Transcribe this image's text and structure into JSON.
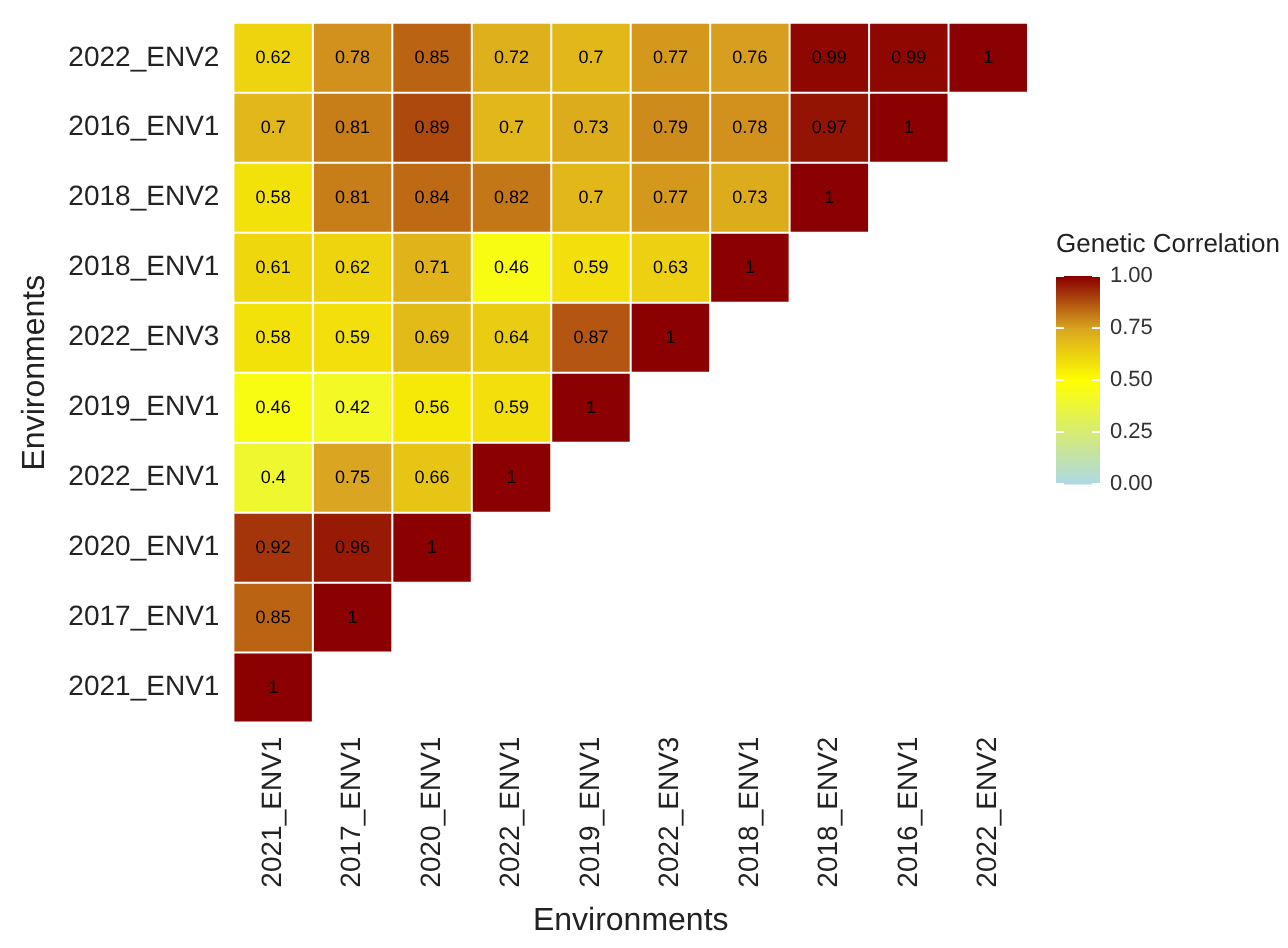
{
  "chart_data": {
    "type": "heatmap",
    "xlabel": "Environments",
    "ylabel": "Environments",
    "clabel": "Genetic Correlation",
    "categories": [
      "2021_ENV1",
      "2017_ENV1",
      "2020_ENV1",
      "2022_ENV1",
      "2019_ENV1",
      "2022_ENV3",
      "2018_ENV1",
      "2018_ENV2",
      "2016_ENV1",
      "2022_ENV2"
    ],
    "y_categories": [
      "2022_ENV2",
      "2016_ENV1",
      "2018_ENV2",
      "2018_ENV1",
      "2022_ENV3",
      "2019_ENV1",
      "2022_ENV1",
      "2020_ENV1",
      "2017_ENV1",
      "2021_ENV1"
    ],
    "cells": [
      [
        0.62,
        0.78,
        0.85,
        0.72,
        0.7,
        0.77,
        0.76,
        0.99,
        0.99,
        1
      ],
      [
        0.7,
        0.81,
        0.89,
        0.7,
        0.73,
        0.79,
        0.78,
        0.97,
        1,
        null
      ],
      [
        0.58,
        0.81,
        0.84,
        0.82,
        0.7,
        0.77,
        0.73,
        1,
        null,
        null
      ],
      [
        0.61,
        0.62,
        0.71,
        0.46,
        0.59,
        0.63,
        1,
        null,
        null,
        null
      ],
      [
        0.58,
        0.59,
        0.69,
        0.64,
        0.87,
        1,
        null,
        null,
        null,
        null
      ],
      [
        0.46,
        0.42,
        0.56,
        0.59,
        1,
        null,
        null,
        null,
        null,
        null
      ],
      [
        0.4,
        0.75,
        0.66,
        1,
        null,
        null,
        null,
        null,
        null,
        null
      ],
      [
        0.92,
        0.96,
        1,
        null,
        null,
        null,
        null,
        null,
        null,
        null
      ],
      [
        0.85,
        1,
        null,
        null,
        null,
        null,
        null,
        null,
        null,
        null
      ],
      [
        1,
        null,
        null,
        null,
        null,
        null,
        null,
        null,
        null,
        null
      ]
    ],
    "data_labels": true,
    "clim": [
      0,
      1
    ],
    "cticks": [
      {
        "value": 0,
        "label": "0.00"
      },
      {
        "value": 0.25,
        "label": "0.25"
      },
      {
        "value": 0.5,
        "label": "0.50"
      },
      {
        "value": 0.75,
        "label": "0.75"
      },
      {
        "value": 1,
        "label": "1.00"
      }
    ],
    "grid": false
  }
}
